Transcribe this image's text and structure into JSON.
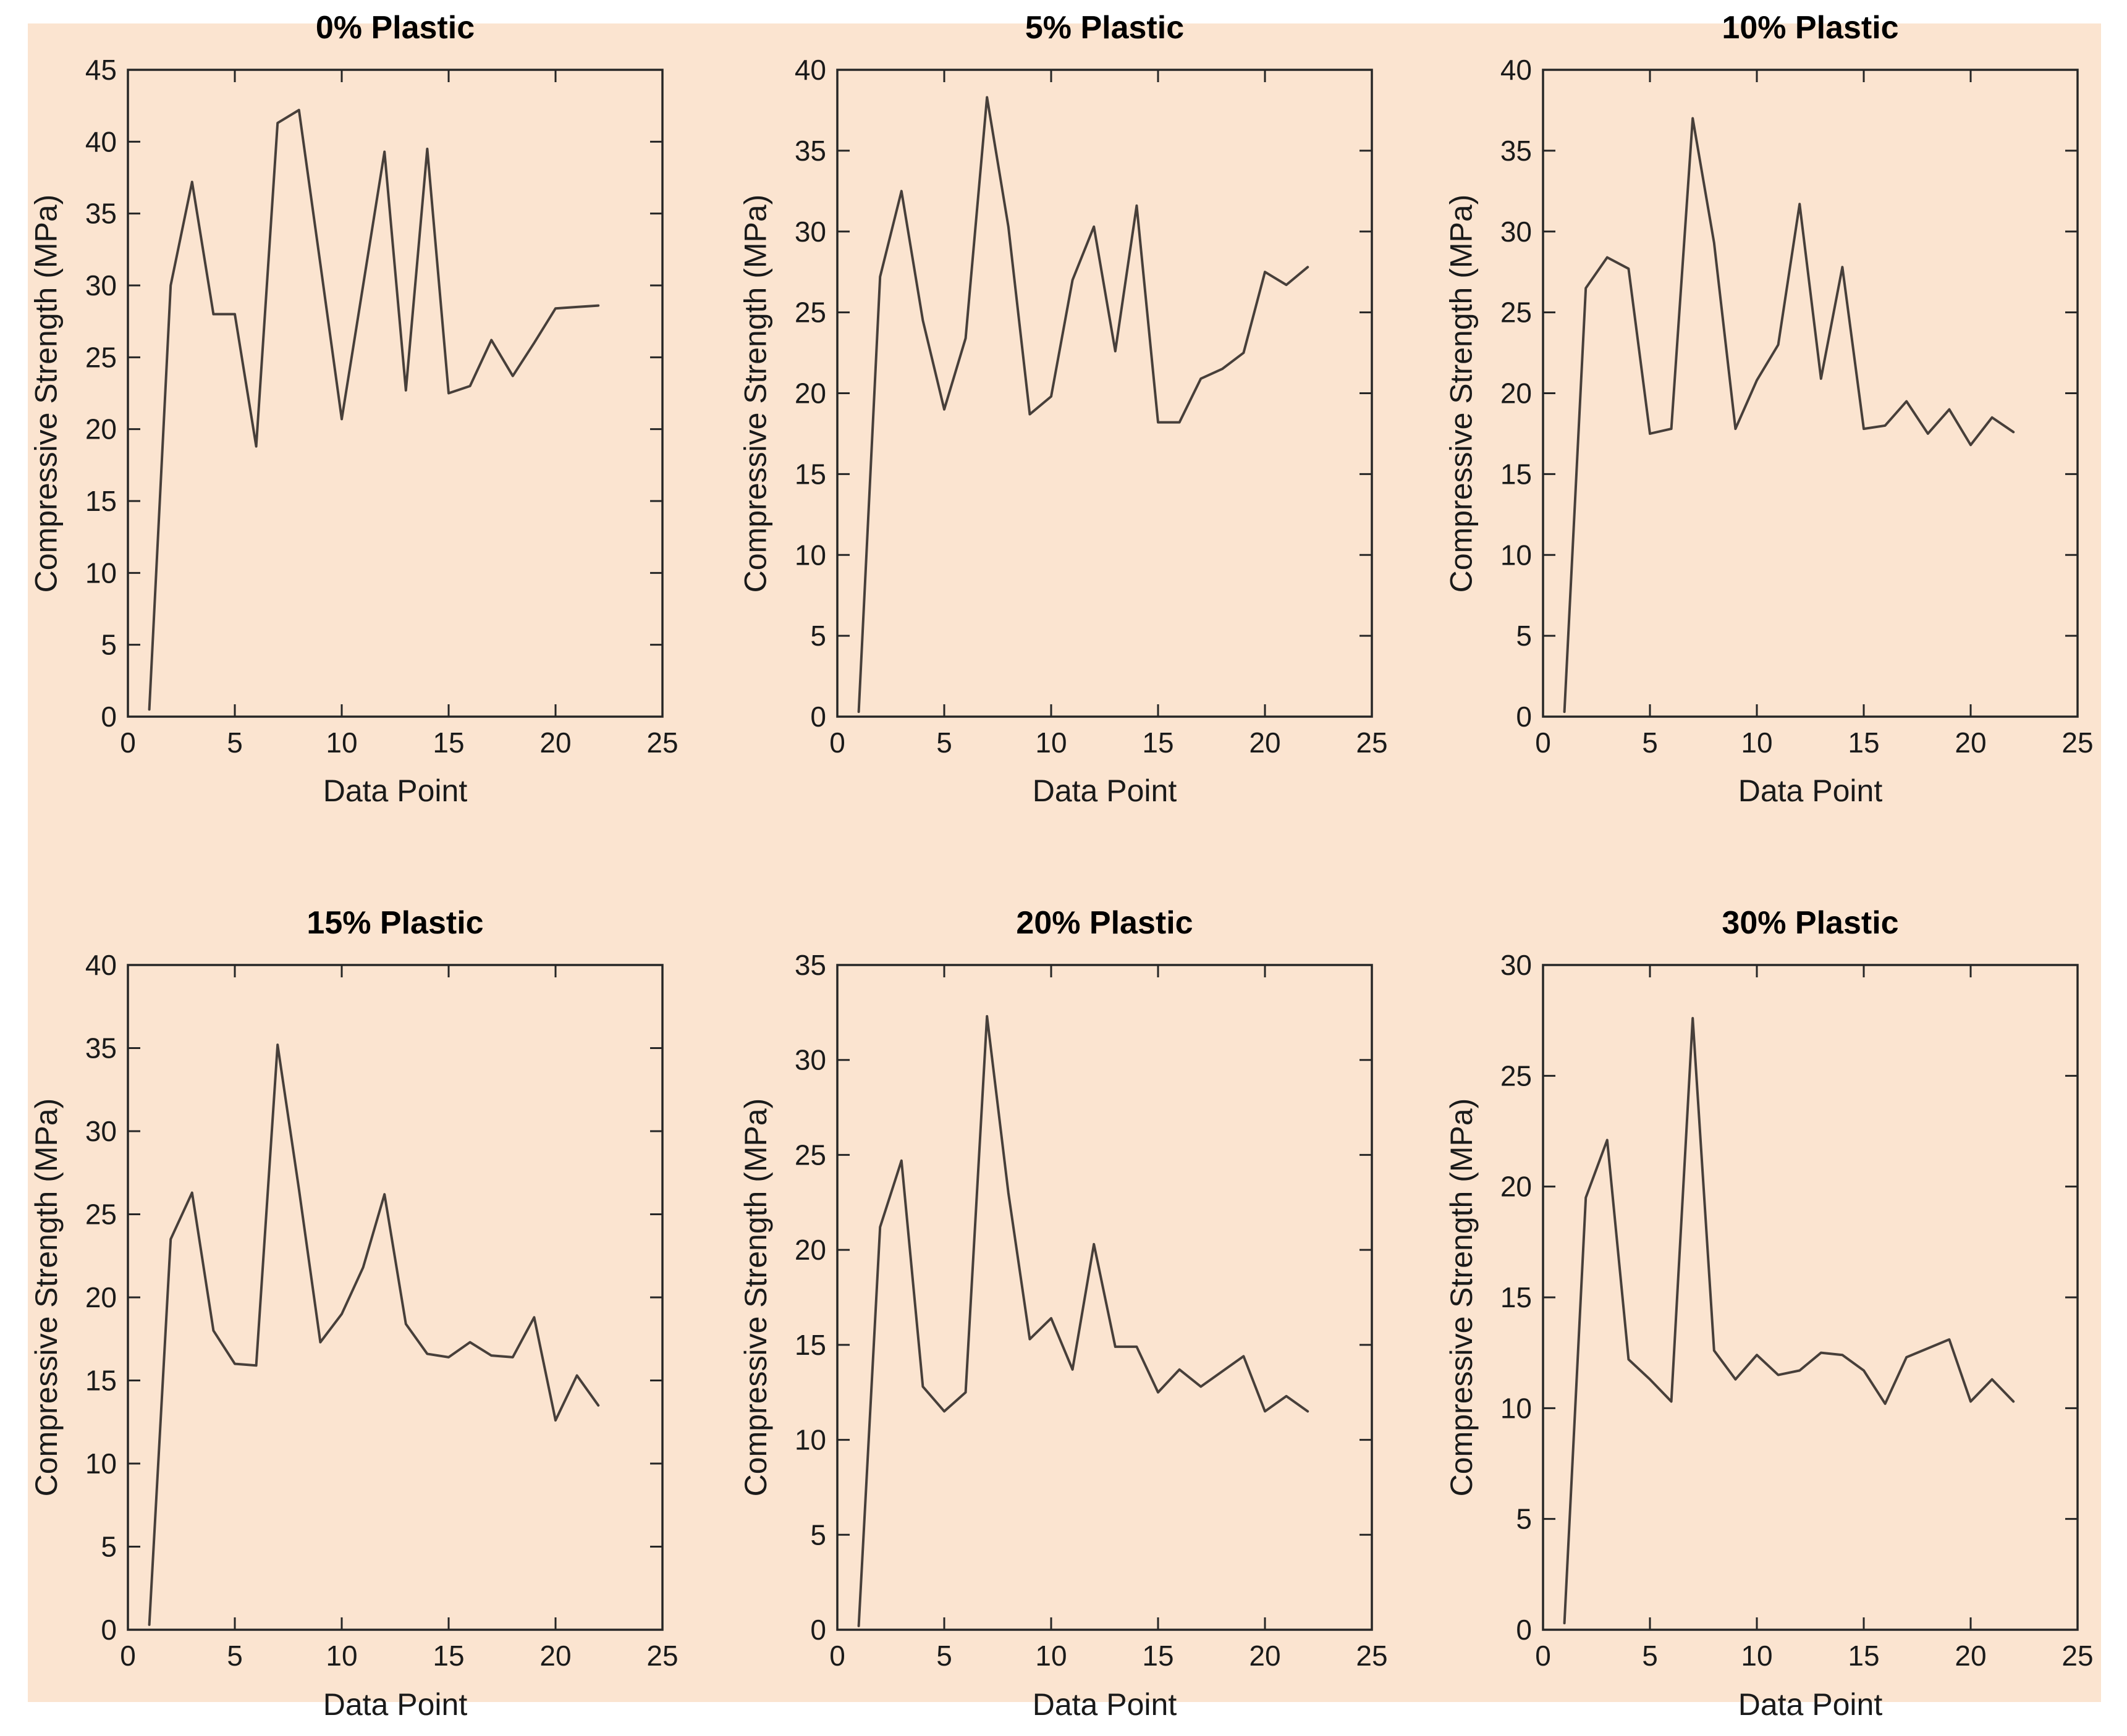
{
  "figure": {
    "background_color": "#fbe4d0",
    "outer_border_color": "#ffffff",
    "axis_color": "#262626",
    "line_color": "#473f3a",
    "text_color": "#1a1a1a",
    "rows": 2,
    "cols": 3
  },
  "chart_data": [
    {
      "type": "line",
      "title": "0% Plastic",
      "xlabel": "Data Point",
      "ylabel": "Compressive Strength (MPa)",
      "xlim": [
        0,
        25
      ],
      "ylim": [
        0,
        45
      ],
      "xticks": [
        0,
        5,
        10,
        15,
        20,
        25
      ],
      "yticks": [
        0,
        5,
        10,
        15,
        20,
        25,
        30,
        35,
        40,
        45
      ],
      "grid": false,
      "legend": null,
      "x": [
        1,
        2,
        3,
        4,
        5,
        6,
        7,
        8,
        9,
        10,
        11,
        12,
        13,
        14,
        15,
        16,
        17,
        18,
        19,
        20,
        21,
        22
      ],
      "values": [
        0.5,
        30.0,
        37.2,
        28.0,
        28.0,
        18.8,
        41.3,
        42.2,
        31.5,
        20.7,
        30.0,
        39.3,
        22.7,
        39.5,
        22.5,
        23.0,
        26.2,
        23.7,
        26.0,
        28.4,
        28.5,
        28.6
      ]
    },
    {
      "type": "line",
      "title": "5% Plastic",
      "xlabel": "Data Point",
      "ylabel": "Compressive Strength (MPa)",
      "xlim": [
        0,
        25
      ],
      "ylim": [
        0,
        40
      ],
      "xticks": [
        0,
        5,
        10,
        15,
        20,
        25
      ],
      "yticks": [
        0,
        5,
        10,
        15,
        20,
        25,
        30,
        35,
        40
      ],
      "grid": false,
      "legend": null,
      "x": [
        1,
        2,
        3,
        4,
        5,
        6,
        7,
        8,
        9,
        10,
        11,
        12,
        13,
        14,
        15,
        16,
        17,
        18,
        19,
        20,
        21,
        22
      ],
      "values": [
        0.3,
        27.2,
        32.5,
        24.5,
        19.0,
        23.4,
        38.3,
        30.3,
        18.7,
        19.8,
        27.0,
        30.3,
        22.6,
        31.6,
        18.2,
        18.2,
        20.9,
        21.5,
        22.5,
        27.5,
        26.7,
        27.8
      ]
    },
    {
      "type": "line",
      "title": "10% Plastic",
      "xlabel": "Data Point",
      "ylabel": "Compressive Strength (MPa)",
      "xlim": [
        0,
        25
      ],
      "ylim": [
        0,
        40
      ],
      "xticks": [
        0,
        5,
        10,
        15,
        20,
        25
      ],
      "yticks": [
        0,
        5,
        10,
        15,
        20,
        25,
        30,
        35,
        40
      ],
      "grid": false,
      "legend": null,
      "x": [
        1,
        2,
        3,
        4,
        5,
        6,
        7,
        8,
        9,
        10,
        11,
        12,
        13,
        14,
        15,
        16,
        17,
        18,
        19,
        20,
        21,
        22
      ],
      "values": [
        0.3,
        26.5,
        28.4,
        27.7,
        17.5,
        17.8,
        37.0,
        29.3,
        17.8,
        20.8,
        23.0,
        31.7,
        20.9,
        27.8,
        17.8,
        18.0,
        19.5,
        17.5,
        19.0,
        16.8,
        18.5,
        17.6
      ]
    },
    {
      "type": "line",
      "title": "15% Plastic",
      "xlabel": "Data Point",
      "ylabel": "Compressive Strength (MPa)",
      "xlim": [
        0,
        25
      ],
      "ylim": [
        0,
        40
      ],
      "xticks": [
        0,
        5,
        10,
        15,
        20,
        25
      ],
      "yticks": [
        0,
        5,
        10,
        15,
        20,
        25,
        30,
        35,
        40
      ],
      "grid": false,
      "legend": null,
      "x": [
        1,
        2,
        3,
        4,
        5,
        6,
        7,
        8,
        9,
        10,
        11,
        12,
        13,
        14,
        15,
        16,
        17,
        18,
        19,
        20,
        21,
        22
      ],
      "values": [
        0.3,
        23.5,
        26.3,
        18.0,
        16.0,
        15.9,
        35.2,
        26.5,
        17.3,
        19.0,
        21.8,
        26.2,
        18.4,
        16.6,
        16.4,
        17.3,
        16.5,
        16.4,
        18.8,
        12.6,
        15.3,
        13.5
      ]
    },
    {
      "type": "line",
      "title": "20% Plastic",
      "xlabel": "Data Point",
      "ylabel": "Compressive Strength (MPa)",
      "xlim": [
        0,
        25
      ],
      "ylim": [
        0,
        35
      ],
      "xticks": [
        0,
        5,
        10,
        15,
        20,
        25
      ],
      "yticks": [
        0,
        5,
        10,
        15,
        20,
        25,
        30,
        35
      ],
      "grid": false,
      "legend": null,
      "x": [
        1,
        2,
        3,
        4,
        5,
        6,
        7,
        8,
        9,
        10,
        11,
        12,
        13,
        14,
        15,
        16,
        17,
        18,
        19,
        20,
        21,
        22
      ],
      "values": [
        0.2,
        21.2,
        24.7,
        12.8,
        11.5,
        12.5,
        32.3,
        23.0,
        15.3,
        16.4,
        13.7,
        20.3,
        14.9,
        14.9,
        12.5,
        13.7,
        12.8,
        13.6,
        14.4,
        11.5,
        12.3,
        11.5
      ]
    },
    {
      "type": "line",
      "title": "30% Plastic",
      "xlabel": "Data Point",
      "ylabel": "Compressive Strength (MPa)",
      "xlim": [
        0,
        25
      ],
      "ylim": [
        0,
        30
      ],
      "xticks": [
        0,
        5,
        10,
        15,
        20,
        25
      ],
      "yticks": [
        0,
        5,
        10,
        15,
        20,
        25,
        30
      ],
      "grid": false,
      "legend": null,
      "x": [
        1,
        2,
        3,
        4,
        5,
        6,
        7,
        8,
        9,
        10,
        11,
        12,
        13,
        14,
        15,
        16,
        17,
        18,
        19,
        20,
        21,
        22
      ],
      "values": [
        0.3,
        19.5,
        22.1,
        12.2,
        11.3,
        10.3,
        27.6,
        12.6,
        11.3,
        12.4,
        11.5,
        11.7,
        12.5,
        12.4,
        11.7,
        10.2,
        12.3,
        12.7,
        13.1,
        10.3,
        11.3,
        10.3
      ]
    }
  ]
}
